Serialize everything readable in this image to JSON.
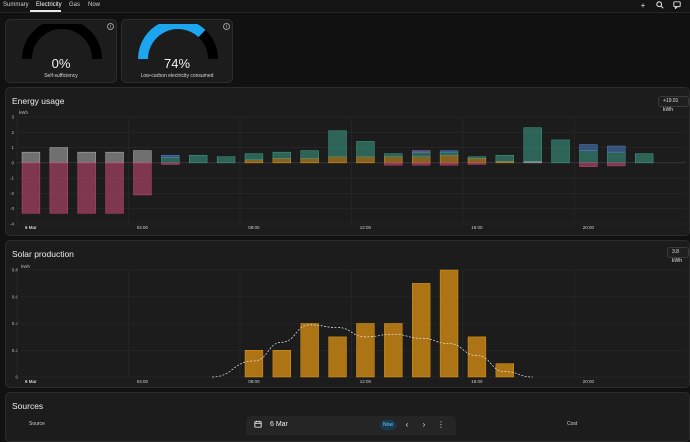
{
  "tabs": [
    {
      "label": "Summary"
    },
    {
      "label": "Electricity"
    },
    {
      "label": "Gas"
    },
    {
      "label": "Now"
    }
  ],
  "icons": {
    "add": "plus-icon",
    "search": "search-icon",
    "comment": "comment-icon"
  },
  "gauges": [
    {
      "value": "0%",
      "label": "Self-sufficiency",
      "fraction": 0.0,
      "color": "#2196f3"
    },
    {
      "value": "74%",
      "label": "Low-carbon electricity consumed",
      "fraction": 0.74,
      "color": "#1ca6f0"
    }
  ],
  "energy": {
    "title": "Energy usage",
    "badge": "+19.91 kWh",
    "unit": "kWh",
    "date_label": "6 Mar",
    "colors": {
      "grid": "#b7b7b7",
      "lowcarbon": "#3ea18a",
      "solar": "#e29b22",
      "export": "#c24a72",
      "battery": "#4e7ec7",
      "other": "#8a74c1"
    },
    "chart_data": {
      "type": "bar",
      "ylim": [
        -4,
        3
      ],
      "yticks": [
        3,
        2,
        1,
        0,
        -1,
        -2,
        -3,
        -4
      ],
      "xticks": [
        {
          "label": "6 Mar",
          "h": 0
        },
        {
          "label": "04:00",
          "h": 4
        },
        {
          "label": "08:00",
          "h": 8
        },
        {
          "label": "12:00",
          "h": 12
        },
        {
          "label": "16:00",
          "h": 16
        },
        {
          "label": "20:00",
          "h": 20
        }
      ],
      "bars": [
        {
          "h": 0,
          "stack": [
            [
              "grid",
              0.7
            ]
          ],
          "neg": -3.3
        },
        {
          "h": 1,
          "stack": [
            [
              "grid",
              1.0
            ]
          ],
          "neg": -3.3
        },
        {
          "h": 2,
          "stack": [
            [
              "grid",
              0.7
            ]
          ],
          "neg": -3.3
        },
        {
          "h": 3,
          "stack": [
            [
              "grid",
              0.7
            ]
          ],
          "neg": -3.3
        },
        {
          "h": 4,
          "stack": [
            [
              "grid",
              0.8
            ]
          ],
          "neg": -2.1
        },
        {
          "h": 5,
          "stack": [
            [
              "lowcarbon",
              0.35
            ],
            [
              "battery",
              0.15
            ]
          ],
          "neg": -0.1
        },
        {
          "h": 6,
          "stack": [
            [
              "lowcarbon",
              0.5
            ]
          ],
          "neg": 0
        },
        {
          "h": 7,
          "stack": [
            [
              "lowcarbon",
              0.4
            ]
          ],
          "neg": 0
        },
        {
          "h": 8,
          "stack": [
            [
              "solar",
              0.2
            ],
            [
              "lowcarbon",
              0.4
            ]
          ],
          "neg": 0
        },
        {
          "h": 9,
          "stack": [
            [
              "solar",
              0.3
            ],
            [
              "lowcarbon",
              0.4
            ]
          ],
          "neg": 0
        },
        {
          "h": 10,
          "stack": [
            [
              "solar",
              0.3
            ],
            [
              "lowcarbon",
              0.5
            ]
          ],
          "neg": 0
        },
        {
          "h": 11,
          "stack": [
            [
              "solar",
              0.4
            ],
            [
              "lowcarbon",
              1.7
            ]
          ],
          "neg": 0
        },
        {
          "h": 12,
          "stack": [
            [
              "solar",
              0.4
            ],
            [
              "lowcarbon",
              1.0
            ]
          ],
          "neg": 0
        },
        {
          "h": 13,
          "stack": [
            [
              "solar",
              0.4
            ],
            [
              "lowcarbon",
              0.2
            ]
          ],
          "neg": -0.15
        },
        {
          "h": 14,
          "stack": [
            [
              "solar",
              0.4
            ],
            [
              "lowcarbon",
              0.3
            ],
            [
              "other",
              0.1
            ]
          ],
          "neg": -0.15
        },
        {
          "h": 15,
          "stack": [
            [
              "solar",
              0.5
            ],
            [
              "lowcarbon",
              0.2
            ],
            [
              "battery",
              0.1
            ]
          ],
          "neg": -0.15
        },
        {
          "h": 16,
          "stack": [
            [
              "solar",
              0.3
            ],
            [
              "lowcarbon",
              0.1
            ]
          ],
          "neg": -0.1
        },
        {
          "h": 17,
          "stack": [
            [
              "solar",
              0.1
            ],
            [
              "lowcarbon",
              0.4
            ]
          ],
          "neg": 0
        },
        {
          "h": 18,
          "stack": [
            [
              "grid",
              0.1
            ],
            [
              "lowcarbon",
              2.2
            ]
          ],
          "neg": 0
        },
        {
          "h": 19,
          "stack": [
            [
              "lowcarbon",
              1.5
            ]
          ],
          "neg": 0
        },
        {
          "h": 20,
          "stack": [
            [
              "lowcarbon",
              0.8
            ],
            [
              "battery",
              0.4
            ]
          ],
          "neg": -0.25
        },
        {
          "h": 21,
          "stack": [
            [
              "lowcarbon",
              0.7
            ],
            [
              "battery",
              0.4
            ]
          ],
          "neg": -0.2
        },
        {
          "h": 22,
          "stack": [
            [
              "lowcarbon",
              0.6
            ]
          ],
          "neg": 0
        }
      ]
    }
  },
  "solar": {
    "title": "Solar production",
    "badge": "3.8 kWh",
    "unit": "kWh",
    "date_label": "6 Mar",
    "color": "#c68413",
    "chart_data": {
      "type": "bar",
      "ylim": [
        0,
        0.8
      ],
      "yticks": [
        0.8,
        0.6,
        0.4,
        0.2,
        0
      ],
      "xticks": [
        {
          "label": "6 Mar",
          "h": 0
        },
        {
          "label": "04:00",
          "h": 4
        },
        {
          "label": "08:00",
          "h": 8
        },
        {
          "label": "12:00",
          "h": 12
        },
        {
          "label": "16:00",
          "h": 16
        },
        {
          "label": "20:00",
          "h": 20
        }
      ],
      "values": [
        {
          "h": 8,
          "v": 0.2
        },
        {
          "h": 9,
          "v": 0.2
        },
        {
          "h": 10,
          "v": 0.4
        },
        {
          "h": 11,
          "v": 0.3
        },
        {
          "h": 12,
          "v": 0.4
        },
        {
          "h": 13,
          "v": 0.4
        },
        {
          "h": 14,
          "v": 0.7
        },
        {
          "h": 15,
          "v": 0.8
        },
        {
          "h": 16,
          "v": 0.3
        },
        {
          "h": 17,
          "v": 0.1
        }
      ],
      "forecast": [
        [
          6.5,
          0
        ],
        [
          8,
          0.12
        ],
        [
          9,
          0.26
        ],
        [
          10,
          0.39
        ],
        [
          11,
          0.37
        ],
        [
          12,
          0.3
        ],
        [
          13,
          0.32
        ],
        [
          14,
          0.29
        ],
        [
          15,
          0.25
        ],
        [
          16,
          0.16
        ],
        [
          17,
          0.04
        ],
        [
          18,
          0
        ]
      ]
    }
  },
  "sources": {
    "title": "Sources",
    "col_source": "Source",
    "col_cost": "Cost"
  },
  "datebar": {
    "date": "6 Mar",
    "now": "Now",
    "prev": "‹",
    "next": "›",
    "more": "⋮"
  }
}
